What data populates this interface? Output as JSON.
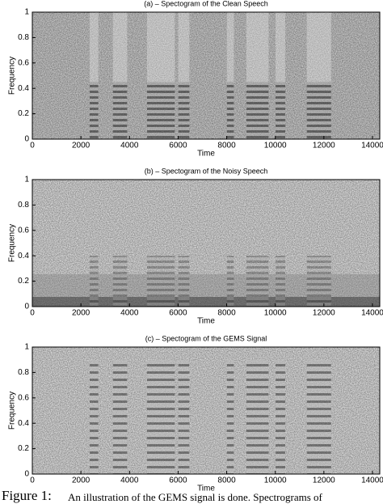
{
  "chart_data": [
    {
      "type": "spectrogram",
      "title": "(a) – Spectogram of the Clean Speech",
      "x_label": "Time",
      "y_label": "Frequency",
      "xlim": [
        0,
        14300
      ],
      "ylim": [
        0,
        1
      ],
      "xticks": [
        0,
        2000,
        4000,
        6000,
        8000,
        10000,
        12000,
        14000
      ],
      "yticks": [
        0,
        0.2,
        0.4,
        0.6,
        0.8,
        1
      ]
    },
    {
      "type": "spectrogram",
      "title": "(b) – Spectogram of the Noisy Speech",
      "x_label": "Time",
      "y_label": "Frequency",
      "xlim": [
        0,
        14300
      ],
      "ylim": [
        0,
        1
      ],
      "xticks": [
        0,
        2000,
        4000,
        6000,
        8000,
        10000,
        12000,
        14000
      ],
      "yticks": [
        0,
        0.2,
        0.4,
        0.6,
        0.8,
        1
      ]
    },
    {
      "type": "spectrogram",
      "title": "(c) – Spectogram of the GEMS Signal",
      "x_label": "Time",
      "y_label": "Frequency",
      "xlim": [
        0,
        14300
      ],
      "ylim": [
        0,
        1
      ],
      "xticks": [
        0,
        2000,
        4000,
        6000,
        8000,
        10000,
        12000,
        14000
      ],
      "yticks": [
        0,
        0.2,
        0.4,
        0.6,
        0.8,
        1
      ]
    }
  ],
  "caption": {
    "label": "Figure 1:",
    "text": "An illustration of the GEMS signal is done. Spectrograms of"
  }
}
